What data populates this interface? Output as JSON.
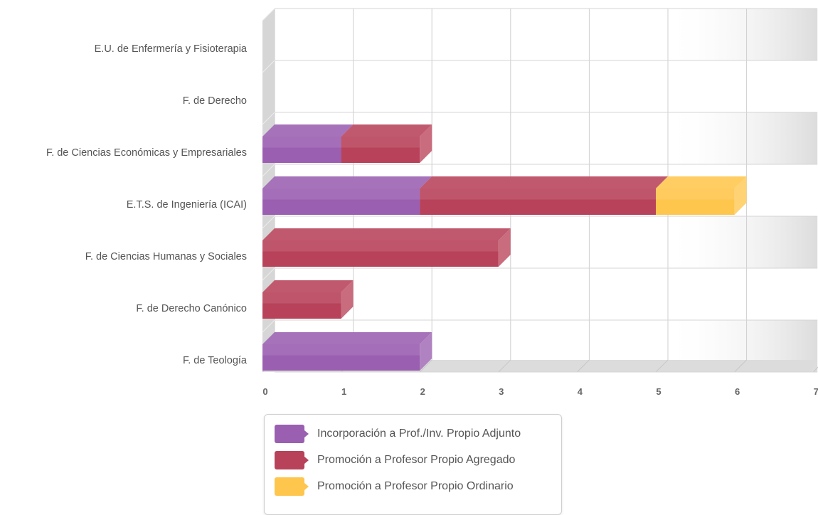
{
  "chart_data": {
    "type": "bar",
    "orientation": "horizontal",
    "stacked": true,
    "categories": [
      "E.U. de Enfermería y Fisioterapia",
      "F. de Derecho",
      "F. de Ciencias Económicas y Empresariales",
      "E.T.S. de Ingeniería (ICAI)",
      "F. de Ciencias Humanas y Sociales",
      "F. de Derecho Canónico",
      "F. de Teología"
    ],
    "series": [
      {
        "name": "Incorporación a Prof./Inv. Propio Adjunto",
        "values": [
          0,
          0,
          1,
          2,
          0,
          0,
          2
        ],
        "color": "#9a5fb0"
      },
      {
        "name": "Promoción a Profesor Propio Agregado",
        "values": [
          0,
          0,
          1,
          3,
          3,
          1,
          0
        ],
        "color": "#b8425a"
      },
      {
        "name": "Promoción a Profesor Propio Ordinario",
        "values": [
          0,
          0,
          0,
          1,
          0,
          0,
          0
        ],
        "color": "#ffc64d"
      }
    ],
    "x_ticks": [
      "0",
      "1",
      "2",
      "3",
      "4",
      "5",
      "6",
      "7"
    ],
    "xlim": [
      0,
      7
    ],
    "grid": true,
    "legend_position": "bottom"
  }
}
